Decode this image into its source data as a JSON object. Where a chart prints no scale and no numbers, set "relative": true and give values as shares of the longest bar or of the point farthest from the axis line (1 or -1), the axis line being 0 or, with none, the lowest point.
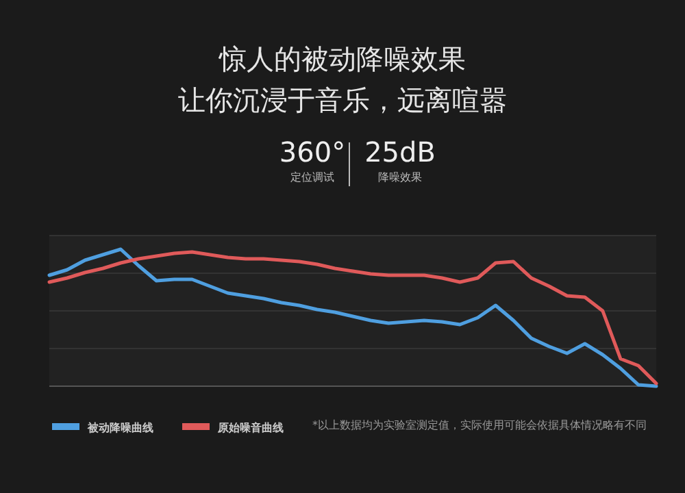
{
  "chart_data": {
    "type": "line",
    "title": "惊人的被动降噪效果",
    "subtitle": "让你沉浸于音乐，远离喧嚣",
    "annotations": [
      "360°",
      "定位调试",
      "25dB",
      "降噪效果",
      "*以上数据均为实验室测定值，实际使用可能会依据具体情况略有不同"
    ],
    "relative": true,
    "categories": [
      null,
      null,
      null,
      null,
      null,
      null,
      null,
      null,
      null,
      null,
      null,
      null,
      null,
      null,
      null,
      null,
      null,
      null,
      null,
      null,
      null,
      null,
      null,
      null,
      null,
      null,
      null,
      null,
      null,
      null,
      null,
      null,
      null,
      null,
      null
    ],
    "series": [
      {
        "name": "被动降噪曲线",
        "color": "#4f9fe0",
        "values": [
          0.81,
          0.85,
          0.92,
          0.96,
          1,
          0.88,
          0.77,
          0.78,
          0.78,
          0.73,
          0.68,
          0.66,
          0.64,
          0.61,
          0.59,
          0.56,
          0.54,
          0.51,
          0.48,
          0.46,
          0.47,
          0.48,
          0.47,
          0.45,
          0.5,
          0.59,
          0.48,
          0.35,
          0.29,
          0.24,
          0.31,
          0.23,
          0.13,
          0.01,
          0
        ]
      },
      {
        "name": "原始噪音曲线",
        "color": "#e05a5a",
        "values": [
          0.76,
          0.79,
          0.83,
          0.86,
          0.9,
          0.93,
          0.95,
          0.97,
          0.98,
          0.96,
          0.94,
          0.93,
          0.93,
          0.92,
          0.91,
          0.89,
          0.86,
          0.84,
          0.82,
          0.81,
          0.81,
          0.81,
          0.79,
          0.76,
          0.79,
          0.9,
          0.91,
          0.79,
          0.73,
          0.66,
          0.65,
          0.55,
          0.2,
          0.15,
          0.02
        ]
      }
    ],
    "grid": "y",
    "legend": "bottom left",
    "marker": "none",
    "line_style": "solid"
  }
}
